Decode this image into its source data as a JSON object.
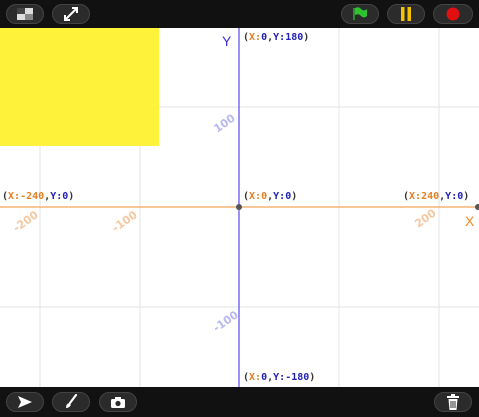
{
  "toolbar_top": {
    "icons": [
      "layout-toggle-icon",
      "fullscreen-icon",
      "green-flag-icon",
      "pause-icon",
      "stop-icon"
    ]
  },
  "toolbar_bottom": {
    "icons": [
      "arrow-pointer-icon",
      "paintbrush-icon",
      "camera-icon",
      "trash-icon"
    ]
  },
  "stage": {
    "axes": {
      "x_label": "X",
      "y_label": "Y"
    },
    "coords": {
      "top": {
        "open": "(",
        "x_key": "X:",
        "x_val": "0",
        "sep": ",",
        "y_key": "Y:",
        "y_val": "180",
        "close": ")"
      },
      "bottom": {
        "open": "(",
        "x_key": "X:",
        "x_val": "0",
        "sep": ",",
        "y_key": "Y:",
        "y_val": "-180",
        "close": ")"
      },
      "left": {
        "open": "(",
        "x_key": "X:",
        "x_val": "-240",
        "sep": ",",
        "y_key": "Y:",
        "y_val": "0",
        "close": ")"
      },
      "center": {
        "open": "(",
        "x_key": "X:",
        "x_val": "0",
        "sep": ",",
        "y_key": "Y:",
        "y_val": "0",
        "close": ")"
      },
      "right": {
        "open": "(",
        "x_key": "X:",
        "x_val": "240",
        "sep": ",",
        "y_key": "Y:",
        "y_val": "0",
        "close": ")"
      }
    },
    "ticks": {
      "x_neg200": "-200",
      "x_neg100": "-100",
      "x_200": "200",
      "y_100": "100",
      "y_neg100": "-100"
    },
    "colors": {
      "x_axis": "#f5a35a",
      "y_axis": "#4b3df0",
      "grid": "#dddddd",
      "yellow_sprite": "#fff23a"
    }
  }
}
